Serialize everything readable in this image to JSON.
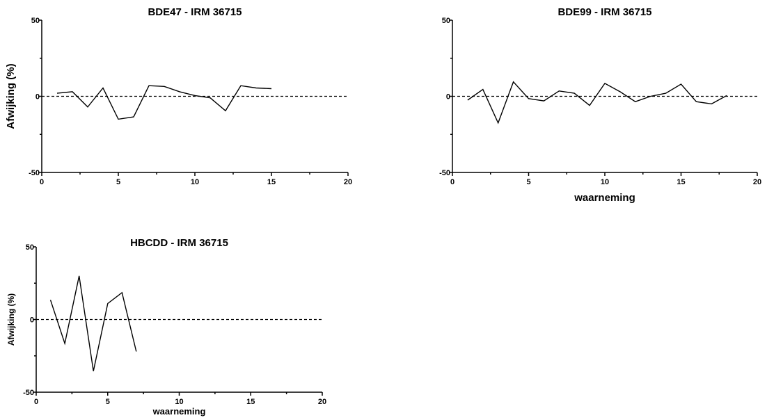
{
  "chart_data": [
    {
      "type": "line",
      "title": "BDE47 - IRM 36715",
      "xlabel": "",
      "ylabel": "Afwijking (%)",
      "xlim": [
        0,
        20
      ],
      "ylim": [
        -50,
        50
      ],
      "xticks": [
        0,
        5,
        10,
        15,
        20
      ],
      "yticks": [
        -50,
        0,
        50
      ],
      "reference_line": {
        "y": 0,
        "style": "dashed"
      },
      "series": [
        {
          "x": [
            1,
            2,
            3,
            4,
            5,
            6,
            7,
            8,
            9,
            10,
            11,
            12,
            13,
            14,
            15
          ],
          "values": [
            2,
            3,
            -7,
            5.5,
            -15,
            -13.5,
            7,
            6.5,
            3,
            0.5,
            -1,
            -9.5,
            7,
            5.5,
            5
          ]
        }
      ]
    },
    {
      "type": "line",
      "title": "BDE99 - IRM 36715",
      "xlabel": "waarneming",
      "ylabel": "",
      "xlim": [
        0,
        20
      ],
      "ylim": [
        -50,
        50
      ],
      "xticks": [
        0,
        5,
        10,
        15,
        20
      ],
      "yticks": [
        -50,
        0,
        50
      ],
      "reference_line": {
        "y": 0,
        "style": "dashed"
      },
      "series": [
        {
          "x": [
            1,
            2,
            3,
            4,
            5,
            6,
            7,
            8,
            9,
            10,
            11,
            12,
            13,
            14,
            15,
            16,
            17,
            18
          ],
          "values": [
            -2.5,
            4.5,
            -17.5,
            9.5,
            -1.5,
            -3,
            3.5,
            2,
            -6,
            8.5,
            3,
            -3.5,
            0,
            2,
            8,
            -3.5,
            -5,
            0.5
          ]
        }
      ]
    },
    {
      "type": "line",
      "title": "HBCDD - IRM 36715",
      "xlabel": "waarneming",
      "ylabel": "Afwijking (%)",
      "xlim": [
        0,
        20
      ],
      "ylim": [
        -50,
        50
      ],
      "xticks": [
        0,
        5,
        10,
        15,
        20
      ],
      "yticks": [
        -50,
        0,
        50
      ],
      "reference_line": {
        "y": 0,
        "style": "dashed"
      },
      "series": [
        {
          "x": [
            1,
            2,
            3,
            4,
            5,
            6,
            7
          ],
          "values": [
            13.5,
            -16.5,
            30,
            -35.5,
            11,
            18.5,
            -22
          ]
        }
      ]
    }
  ]
}
